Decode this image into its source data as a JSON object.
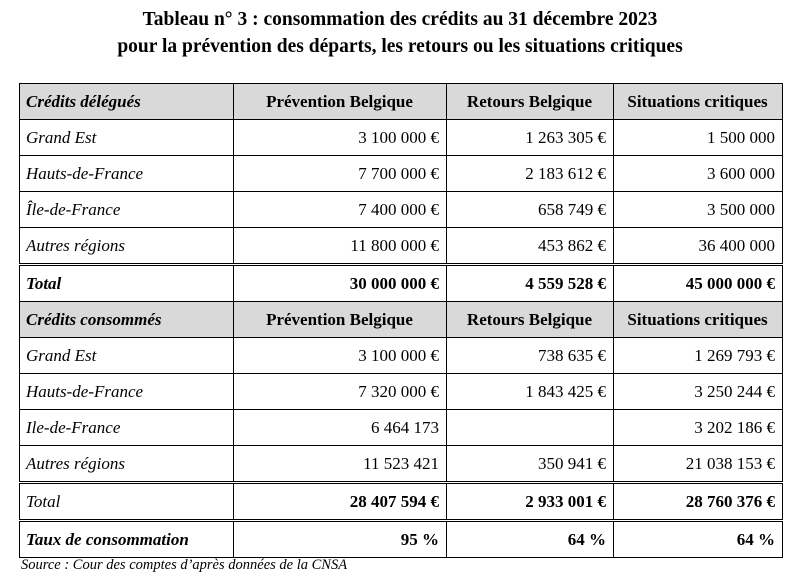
{
  "title": {
    "line1": "Tableau n° 3 : consommation des crédits au 31 décembre 2023",
    "line2": "pour la prévention des départs, les retours ou les situations critiques"
  },
  "table": {
    "section1": {
      "header": [
        "Crédits délégués",
        "Prévention Belgique",
        "Retours Belgique",
        "Situations critiques"
      ],
      "rows": [
        [
          "Grand Est",
          "3 100 000 €",
          "1 263 305 €",
          "1 500 000"
        ],
        [
          "Hauts-de-France",
          "7 700 000 €",
          "2 183 612 €",
          "3 600 000"
        ],
        [
          "Île-de-France",
          "7 400 000 €",
          "658 749 €",
          "3 500 000"
        ],
        [
          "Autres régions",
          "11 800 000 €",
          "453 862 €",
          "36 400 000"
        ]
      ],
      "total": [
        "Total",
        "30 000 000 €",
        "4 559 528 €",
        "45 000 000 €"
      ]
    },
    "section2": {
      "header": [
        "Crédits consommés",
        "Prévention Belgique",
        "Retours Belgique",
        "Situations critiques"
      ],
      "rows": [
        [
          "Grand Est",
          "3 100 000 €",
          "738 635 €",
          "1 269 793 €"
        ],
        [
          "Hauts-de-France",
          "7 320 000 €",
          "1 843 425 €",
          "3 250 244 €"
        ],
        [
          "Ile-de-France",
          "6 464 173",
          "",
          "3 202 186 €"
        ],
        [
          "Autres régions",
          "11 523 421",
          "350 941 €",
          "21 038 153 €"
        ]
      ],
      "total": [
        "Total",
        "28 407 594 €",
        "2 933 001 €",
        "28 760 376 €"
      ],
      "rate": [
        "Taux de consommation",
        "95 %",
        "64 %",
        "64 %"
      ]
    },
    "header_background": "#d9d9d9"
  },
  "source": "Source : Cour des comptes d’après données de la CNSA"
}
